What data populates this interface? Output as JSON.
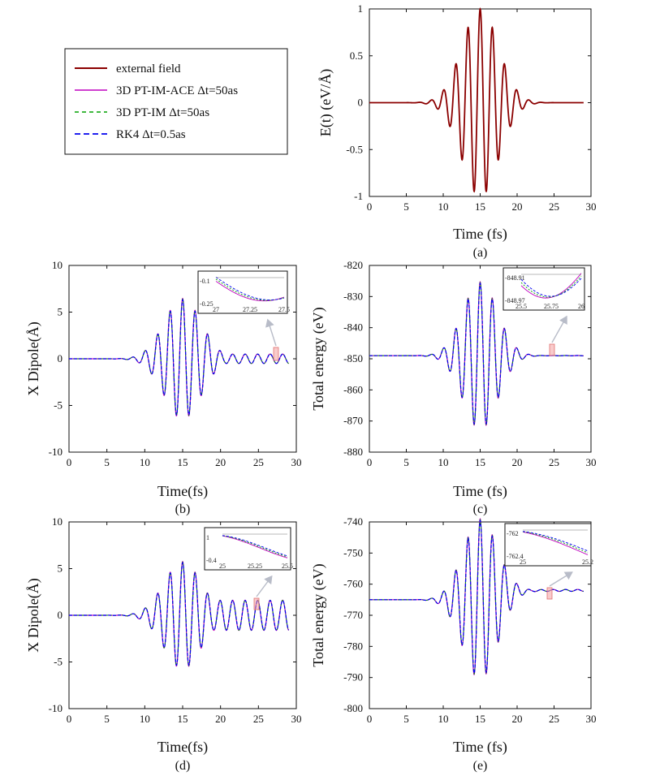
{
  "colors": {
    "external": "#8b0000",
    "ace": "#c000c0",
    "im": "#00a000",
    "rk4": "#0000ee",
    "highlight": "#f4a0a0",
    "arrow": "#b8bcc8"
  },
  "legend": {
    "items": [
      {
        "label": "external field",
        "style": "solid",
        "color": "#8b0000"
      },
      {
        "label": "3D PT-IM-ACE Δt=50as",
        "style": "solid",
        "color": "#c000c0"
      },
      {
        "label": "3D PT-IM Δt=50as",
        "style": "dashed",
        "color": "#00a000"
      },
      {
        "label": "RK4 Δt=0.5as",
        "style": "dashed",
        "color": "#0000ee"
      }
    ]
  },
  "chart_data": [
    {
      "id": "a",
      "type": "line",
      "caption": "(a)",
      "xlabel": "Time (fs)",
      "ylabel": "E(t) (eV/Å)",
      "xlim": [
        0,
        30
      ],
      "ylim": [
        -1,
        1
      ],
      "xticks": [
        "0",
        "5",
        "10",
        "15",
        "20",
        "25",
        "30"
      ],
      "yticks": [
        "1",
        "0.5",
        "0",
        "-0.5",
        "-1"
      ],
      "signal": {
        "kind": "field",
        "amplitude": 1.0,
        "center_fs": 15,
        "width_fs": 3.5,
        "period_fs": 1.65,
        "t_end": 29
      },
      "series": [
        {
          "name": "external field"
        }
      ]
    },
    {
      "id": "b",
      "type": "line",
      "caption": "(b)",
      "xlabel": "Time(fs)",
      "ylabel": "X Dipole(Å)",
      "xlim": [
        0,
        30
      ],
      "ylim": [
        -10,
        10
      ],
      "xticks": [
        "0",
        "5",
        "10",
        "15",
        "20",
        "25",
        "30"
      ],
      "yticks": [
        "10",
        "5",
        "0",
        "-5",
        "-10"
      ],
      "signal": {
        "kind": "response",
        "baseline": 0,
        "amplitude": 6.4,
        "center_fs": 15,
        "width_fs": 3.5,
        "period_fs": 1.65,
        "tail_amplitude": 0.5,
        "t_end": 29
      },
      "series": [
        {
          "name": "3D PT-IM-ACE Δt=50as"
        },
        {
          "name": "3D PT-IM Δt=50as"
        },
        {
          "name": "RK4 Δt=0.5as"
        }
      ],
      "inset": {
        "xticks": [
          "27",
          "27.25",
          "27.5"
        ],
        "yticks": [
          "-0.1",
          "-0.25"
        ],
        "x_range": [
          27,
          27.5
        ],
        "y_range": [
          -0.25,
          -0.1
        ]
      }
    },
    {
      "id": "c",
      "type": "line",
      "caption": "(c)",
      "xlabel": "Time (fs)",
      "ylabel": "Total energy (eV)",
      "xlim": [
        0,
        30
      ],
      "ylim": [
        -880,
        -820
      ],
      "xticks": [
        "0",
        "5",
        "10",
        "15",
        "20",
        "25",
        "30"
      ],
      "yticks": [
        "-820",
        "-830",
        "-840",
        "-850",
        "-860",
        "-870",
        "-880"
      ],
      "signal": {
        "kind": "response",
        "baseline": -849,
        "amplitude": 23.5,
        "center_fs": 15,
        "width_fs": 3.3,
        "period_fs": 1.65,
        "tail_amplitude": 0.05,
        "t_end": 29
      },
      "series": [
        {
          "name": "3D PT-IM-ACE Δt=50as"
        },
        {
          "name": "3D PT-IM Δt=50as"
        },
        {
          "name": "RK4 Δt=0.5as"
        }
      ],
      "inset": {
        "xticks": [
          "25.5",
          "25.75",
          "26"
        ],
        "yticks": [
          "-848.91",
          "-848.97"
        ],
        "x_range": [
          25.5,
          26
        ],
        "y_range": [
          -848.97,
          -848.91
        ]
      }
    },
    {
      "id": "d",
      "type": "line",
      "caption": "(d)",
      "xlabel": "Time(fs)",
      "ylabel": "X Dipole(Å)",
      "xlim": [
        0,
        30
      ],
      "ylim": [
        -10,
        10
      ],
      "xticks": [
        "0",
        "5",
        "10",
        "15",
        "20",
        "25",
        "30"
      ],
      "yticks": [
        "10",
        "5",
        "0",
        "-5",
        "-10"
      ],
      "signal": {
        "kind": "response",
        "baseline": 0,
        "amplitude": 5.7,
        "center_fs": 15,
        "width_fs": 3.5,
        "period_fs": 1.65,
        "tail_amplitude": 1.6,
        "t_end": 29
      },
      "series": [
        {
          "name": "3D PT-IM-ACE Δt=50as"
        },
        {
          "name": "3D PT-IM Δt=50as"
        },
        {
          "name": "RK4 Δt=0.5as"
        }
      ],
      "inset": {
        "xticks": [
          "25",
          "25.25",
          "25.5"
        ],
        "yticks": [
          "1",
          "-0.4"
        ],
        "x_range": [
          25,
          25.5
        ],
        "y_range": [
          -0.4,
          1
        ]
      }
    },
    {
      "id": "e",
      "type": "line",
      "caption": "(e)",
      "xlabel": "Time (fs)",
      "ylabel": "Total energy (eV)",
      "xlim": [
        0,
        30
      ],
      "ylim": [
        -800,
        -740
      ],
      "xticks": [
        "0",
        "5",
        "10",
        "15",
        "20",
        "25",
        "30"
      ],
      "yticks": [
        "-740",
        "-750",
        "-760",
        "-770",
        "-780",
        "-790",
        "-800"
      ],
      "signal": {
        "kind": "response",
        "baseline": -765,
        "amplitude": 25.5,
        "center_fs": 15,
        "width_fs": 3.3,
        "period_fs": 1.65,
        "tail_amplitude": 0.3,
        "t_end": 29,
        "final_baseline": -762
      },
      "series": [
        {
          "name": "3D PT-IM-ACE Δt=50as"
        },
        {
          "name": "3D PT-IM Δt=50as"
        },
        {
          "name": "RK4 Δt=0.5as"
        }
      ],
      "inset": {
        "xticks": [
          "25",
          "25.2"
        ],
        "yticks": [
          "-762",
          "-762.4"
        ],
        "x_range": [
          25,
          25.3
        ],
        "y_range": [
          -762.4,
          -762
        ]
      }
    }
  ]
}
